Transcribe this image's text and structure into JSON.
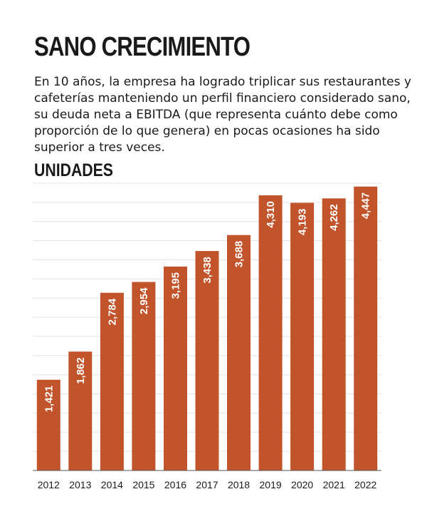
{
  "header": {
    "title": "SANO CRECIMIENTO",
    "description": "En 10 años, la empresa ha logrado triplicar sus restaurantes y cafeterías manteniendo un perfil financiero considerado sano, su deuda neta a EBITDA (que representa cuánto debe como proporción de lo que genera) en pocas ocasiones ha sido superior a tres veces."
  },
  "chart_data": {
    "type": "bar",
    "title": "UNIDADES",
    "xlabel": "",
    "ylabel": "",
    "categories": [
      "2012",
      "2013",
      "2014",
      "2015",
      "2016",
      "2017",
      "2018",
      "2019",
      "2020",
      "2021",
      "2022"
    ],
    "values": [
      1421,
      1862,
      2784,
      2954,
      3195,
      3438,
      3688,
      4310,
      4193,
      4262,
      4447
    ],
    "value_labels": [
      "1,421",
      "1,862",
      "2,784",
      "2,954",
      "3,195",
      "3,438",
      "3,688",
      "4,310",
      "4,193",
      "4,262",
      "4,447"
    ],
    "ylim": [
      0,
      4500
    ],
    "grid": true,
    "legend": "none",
    "bar_color": "#c2542b",
    "grid_color": "#e3e3e3"
  }
}
